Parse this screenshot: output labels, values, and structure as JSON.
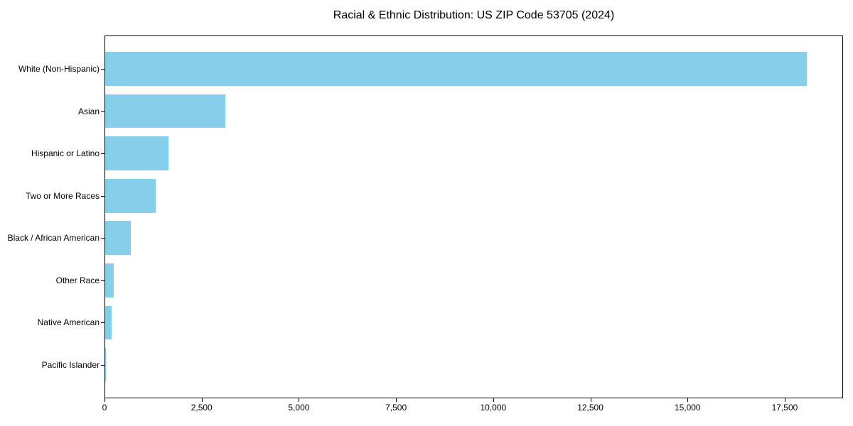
{
  "title": "Racial & Ethnic Distribution: US ZIP Code 53705 (2024)",
  "colors": {
    "bar": "#87CEEB",
    "axis": "#000000",
    "text": "#000000",
    "background": "#FFFFFF"
  },
  "chart_data": {
    "type": "bar",
    "orientation": "horizontal",
    "title": "Racial & Ethnic Distribution: US ZIP Code 53705 (2024)",
    "categories": [
      "White (Non-Hispanic)",
      "Asian",
      "Hispanic or Latino",
      "Two or More Races",
      "Black / African American",
      "Other Race",
      "Native American",
      "Pacific Islander"
    ],
    "values": [
      18050,
      3090,
      1630,
      1300,
      660,
      215,
      170,
      15
    ],
    "xlabel": "",
    "ylabel": "",
    "xlim": [
      0,
      19000
    ],
    "x_ticks": [
      0,
      2500,
      5000,
      7500,
      10000,
      12500,
      15000,
      17500
    ],
    "x_tick_labels": [
      "0",
      "2,500",
      "5,000",
      "7,500",
      "10,000",
      "12,500",
      "15,000",
      "17,500"
    ],
    "grid": false,
    "legend": "none",
    "bar_color": "#87CEEB"
  }
}
